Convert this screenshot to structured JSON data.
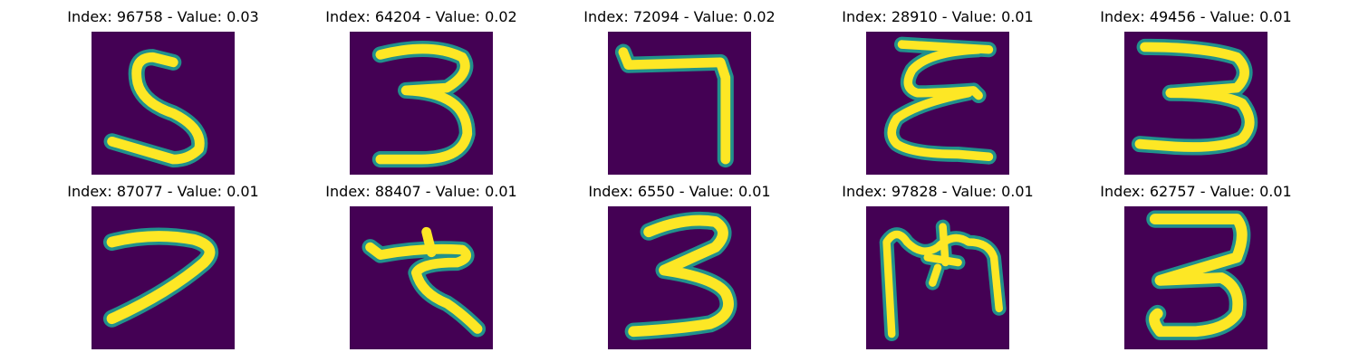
{
  "theme": {
    "background": "#440154",
    "stroke_dark": "#21918c",
    "stroke_mid": "#7ad151",
    "stroke_bright": "#fde725"
  },
  "panels": [
    {
      "title": "Index: 96758 - Value: 0.03",
      "digit": "5"
    },
    {
      "title": "Index: 64204 - Value: 0.02",
      "digit": "3"
    },
    {
      "title": "Index: 72094 - Value: 0.02",
      "digit": "7"
    },
    {
      "title": "Index: 28910 - Value: 0.01",
      "digit": "3"
    },
    {
      "title": "Index: 49456 - Value: 0.01",
      "digit": "3"
    },
    {
      "title": "Index: 87077 - Value: 0.01",
      "digit": "7"
    },
    {
      "title": "Index: 88407 - Value: 0.01",
      "digit": "7"
    },
    {
      "title": "Index: 6550 - Value: 0.01",
      "digit": "3"
    },
    {
      "title": "Index: 97828 - Value: 0.01",
      "digit": "3"
    },
    {
      "title": "Index: 62757 - Value: 0.01",
      "digit": "3"
    }
  ]
}
